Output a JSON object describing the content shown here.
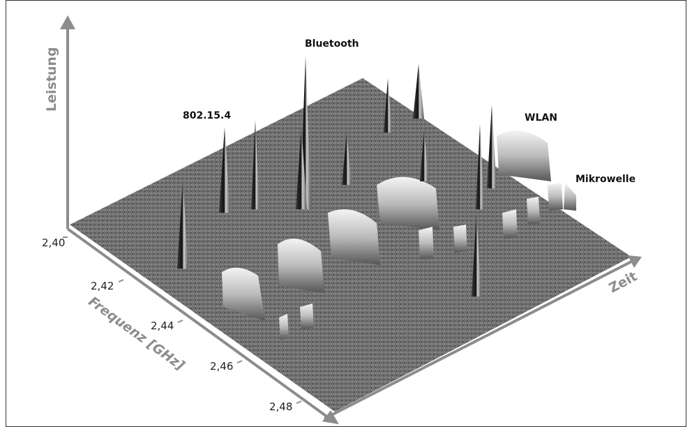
{
  "axes": {
    "power": "Leistung",
    "frequency": {
      "label": "Frequenz [GHz]",
      "ticks": [
        "2,40",
        "2,42",
        "2,44",
        "2,46",
        "2,48"
      ]
    },
    "time": "Zeit"
  },
  "annotations": {
    "bluetooth": "Bluetooth",
    "zigbee": "802.15.4",
    "wlan": "WLAN",
    "microwave": "Mikrowelle"
  }
}
